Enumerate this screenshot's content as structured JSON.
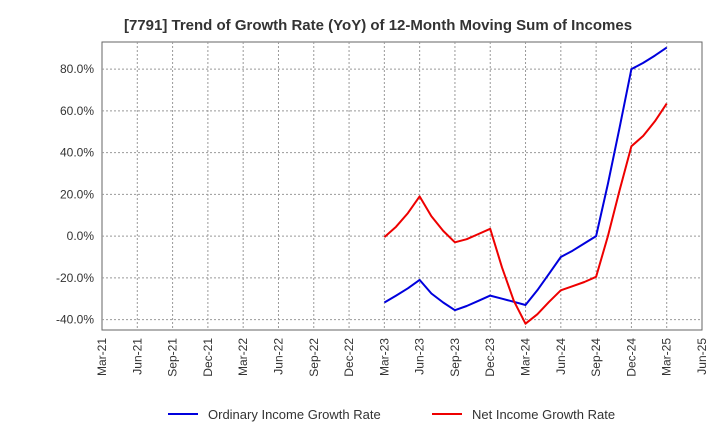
{
  "chart_data": {
    "type": "line",
    "title": "[7791]  Trend of Growth Rate (YoY) of 12-Month Moving Sum of Incomes",
    "xlabel": "",
    "ylabel": "",
    "x_ticks": [
      "Mar-21",
      "Jun-21",
      "Sep-21",
      "Dec-21",
      "Mar-22",
      "Jun-22",
      "Sep-22",
      "Dec-22",
      "Mar-23",
      "Jun-23",
      "Sep-23",
      "Dec-23",
      "Mar-24",
      "Jun-24",
      "Sep-24",
      "Dec-24",
      "Mar-25",
      "Jun-25"
    ],
    "y_ticks": [
      -40,
      -20,
      0,
      20,
      40,
      60,
      80
    ],
    "y_tick_labels": [
      "-40.0%",
      "-20.0%",
      "0.0%",
      "20.0%",
      "40.0%",
      "60.0%",
      "80.0%"
    ],
    "ylim": [
      -45,
      93
    ],
    "grid": true,
    "legend_position": "bottom",
    "series": [
      {
        "name": "Ordinary Income Growth Rate",
        "color": "#0000dd",
        "x": [
          "Mar-23",
          "Apr-23",
          "May-23",
          "Jun-23",
          "Jul-23",
          "Aug-23",
          "Sep-23",
          "Oct-23",
          "Nov-23",
          "Dec-23",
          "Jan-24",
          "Feb-24",
          "Mar-24",
          "Apr-24",
          "May-24",
          "Jun-24",
          "Jul-24",
          "Aug-24",
          "Sep-24",
          "Oct-24",
          "Nov-24",
          "Dec-24",
          "Jan-25",
          "Feb-25",
          "Mar-25"
        ],
        "values": [
          -31.8,
          -28.5,
          -25,
          -21,
          -27.5,
          -31.8,
          -35.5,
          -33.5,
          -31,
          -28.5,
          -30,
          -31.5,
          -33,
          -26,
          -18,
          -10,
          -7,
          -3.5,
          0,
          25,
          52,
          80,
          83,
          86.5,
          90.3
        ]
      },
      {
        "name": "Net Income Growth Rate",
        "color": "#ee0000",
        "x": [
          "Mar-23",
          "Apr-23",
          "May-23",
          "Jun-23",
          "Jul-23",
          "Aug-23",
          "Sep-23",
          "Oct-23",
          "Nov-23",
          "Dec-23",
          "Jan-24",
          "Feb-24",
          "Mar-24",
          "Apr-24",
          "May-24",
          "Jun-24",
          "Jul-24",
          "Aug-24",
          "Sep-24",
          "Oct-24",
          "Nov-24",
          "Dec-24",
          "Jan-25",
          "Feb-25",
          "Mar-25"
        ],
        "values": [
          -0.5,
          4.5,
          11,
          19,
          9.5,
          2.5,
          -3,
          -1.5,
          1,
          3.5,
          -15,
          -31,
          -42,
          -37.5,
          -31.5,
          -26,
          -24,
          -22,
          -19.5,
          0,
          22,
          43,
          48,
          55,
          63.5
        ]
      }
    ]
  }
}
